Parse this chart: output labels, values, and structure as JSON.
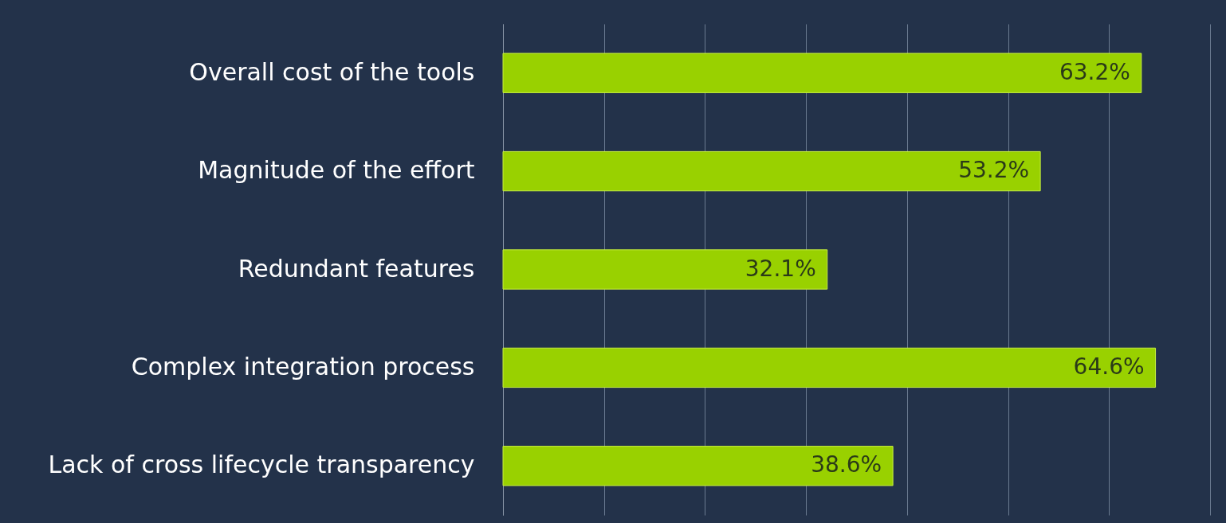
{
  "chart_data": {
    "type": "bar",
    "orientation": "horizontal",
    "categories": [
      "Overall cost of the tools",
      "Magnitude of the effort",
      "Redundant features",
      "Complex integration process",
      "Lack of cross lifecycle transparency"
    ],
    "values": [
      63.2,
      53.2,
      32.1,
      64.6,
      38.6
    ],
    "value_labels": [
      "63.2%",
      "53.2%",
      "32.1%",
      "64.6%",
      "38.6%"
    ],
    "color": "#99d100",
    "xlim": [
      0,
      70
    ],
    "xticks": [
      {
        "value": 0,
        "label": null
      },
      {
        "value": 10,
        "label": null
      },
      {
        "value": 20,
        "label": null
      },
      {
        "value": 30,
        "label": null
      },
      {
        "value": 40,
        "label": null
      },
      {
        "value": 50,
        "label": null
      },
      {
        "value": 60,
        "label": null
      },
      {
        "value": 70,
        "label": null
      }
    ],
    "grid": "x",
    "tick_labels": "y"
  }
}
